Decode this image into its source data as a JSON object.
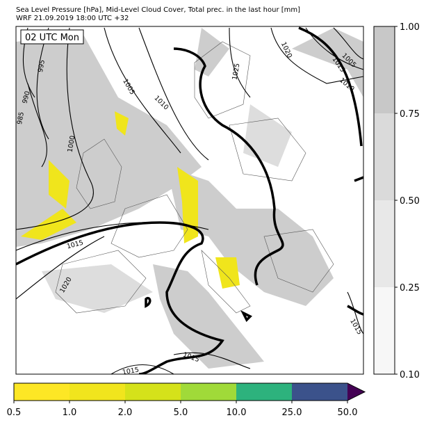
{
  "header": {
    "title": "Sea Level Pressure [hPa], Mid-Level Cloud Cover, Total prec. in the last hour [mm]",
    "subtitle": "WRF 21.09.2019 18:00 UTC +32"
  },
  "map": {
    "time_label": "02 UTC Mon",
    "isobar_labels": [
      "995",
      "990",
      "985",
      "1000",
      "1005",
      "1010",
      "1015",
      "1020",
      "1025",
      "1015",
      "1005",
      "1010",
      "1020",
      "1015",
      "1015",
      "1015"
    ]
  },
  "cloud_colorbar": {
    "ticks": [
      "1.00",
      "0.75",
      "0.50",
      "0.25",
      "0.10"
    ]
  },
  "precip_colorbar": {
    "ticks": [
      "0.5",
      "1.0",
      "2.0",
      "5.0",
      "10.0",
      "25.0",
      "50.0"
    ]
  }
}
